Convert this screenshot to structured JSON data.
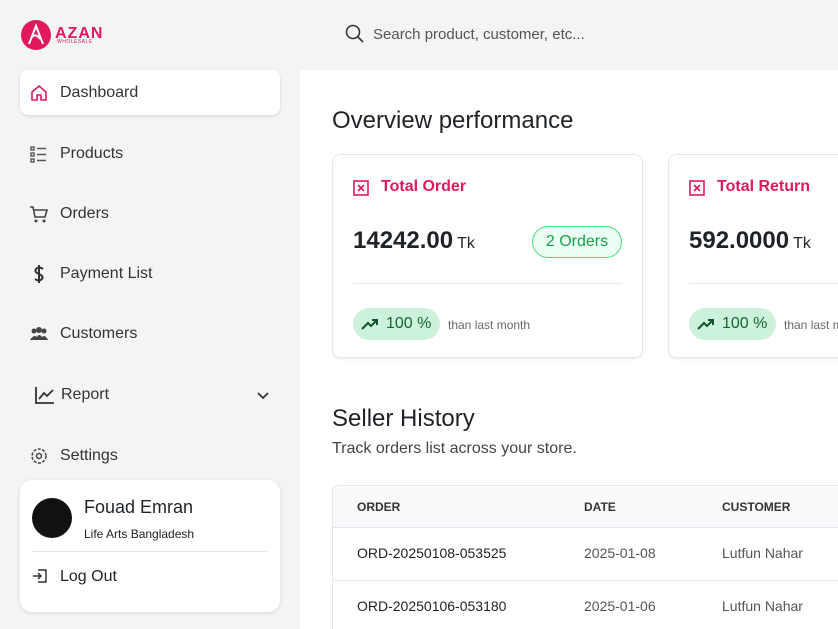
{
  "logo": {
    "name": "AZAN",
    "tagline": "WHOLESALE"
  },
  "search": {
    "placeholder": "Search product, customer, etc..."
  },
  "nav": [
    {
      "label": "Dashboard"
    },
    {
      "label": "Products"
    },
    {
      "label": "Orders"
    },
    {
      "label": "Payment List"
    },
    {
      "label": "Customers"
    },
    {
      "label": "Report"
    },
    {
      "label": "Settings"
    }
  ],
  "user": {
    "name": "Fouad Emran",
    "company": "Life Arts Bangladesh",
    "logout": "Log Out"
  },
  "overview": {
    "title": "Overview performance",
    "cards": [
      {
        "title": "Total Order",
        "amount": "14242.00",
        "unit": "Tk",
        "badge": "2 Orders",
        "change": "100 %",
        "note": "than last month"
      },
      {
        "title": "Total Return",
        "amount": "592.0000",
        "unit": "Tk",
        "change": "100 %",
        "note": "than last month"
      }
    ]
  },
  "history": {
    "title": "Seller History",
    "subtitle": "Track orders list across your store.",
    "columns": [
      "ORDER",
      "DATE",
      "CUSTOMER"
    ],
    "rows": [
      [
        "ORD-20250108-053525",
        "2025-01-08",
        "Lutfun Nahar"
      ],
      [
        "ORD-20250106-053180",
        "2025-01-06",
        "Lutfun Nahar"
      ]
    ]
  }
}
